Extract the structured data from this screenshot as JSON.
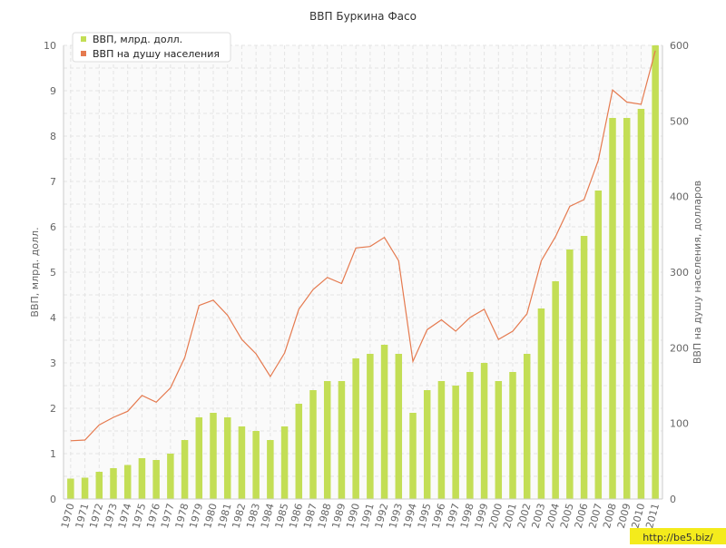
{
  "chart_data": {
    "type": "bar+line",
    "title": "ВВП Буркина Фасо",
    "categories": [
      "1970",
      "1971",
      "1972",
      "1973",
      "1974",
      "1975",
      "1976",
      "1977",
      "1978",
      "1979",
      "1980",
      "1981",
      "1982",
      "1983",
      "1984",
      "1985",
      "1986",
      "1987",
      "1988",
      "1989",
      "1990",
      "1991",
      "1992",
      "1993",
      "1994",
      "1995",
      "1996",
      "1997",
      "1998",
      "1999",
      "2000",
      "2001",
      "2002",
      "2003",
      "2004",
      "2005",
      "2006",
      "2007",
      "2008",
      "2009",
      "2010",
      "2011"
    ],
    "series": [
      {
        "name": "ВВП, млрд. долл.",
        "type": "bar",
        "axis": "left",
        "values": [
          0.45,
          0.47,
          0.6,
          0.68,
          0.75,
          0.9,
          0.86,
          1.0,
          1.3,
          1.8,
          1.9,
          1.8,
          1.6,
          1.5,
          1.3,
          1.6,
          2.1,
          2.4,
          2.6,
          2.6,
          3.1,
          3.2,
          3.4,
          3.2,
          1.9,
          2.4,
          2.6,
          2.5,
          2.8,
          3.0,
          2.6,
          2.8,
          3.2,
          4.2,
          4.8,
          5.5,
          5.8,
          6.8,
          8.4,
          8.4,
          8.6,
          10.0
        ]
      },
      {
        "name": "ВВП на душу населения",
        "type": "line",
        "axis": "right",
        "values": [
          77,
          78,
          98,
          108,
          116,
          137,
          128,
          147,
          187,
          256,
          263,
          243,
          211,
          192,
          162,
          193,
          251,
          277,
          293,
          285,
          332,
          334,
          346,
          315,
          182,
          224,
          237,
          222,
          240,
          251,
          211,
          222,
          245,
          315,
          347,
          387,
          396,
          448,
          541,
          525,
          522,
          593
        ]
      }
    ],
    "y_left": {
      "label": "ВВП, млрд. долл.",
      "lim": [
        0,
        10
      ],
      "ticks": [
        0,
        1,
        2,
        3,
        4,
        5,
        6,
        7,
        8,
        9,
        10
      ]
    },
    "y_right": {
      "label": "ВВП на душу населения, долларов",
      "lim": [
        0,
        600
      ],
      "ticks": [
        0,
        100,
        200,
        300,
        400,
        500,
        600
      ]
    },
    "grid": true,
    "legend": "top-left",
    "colors": {
      "bar": "#c3de55",
      "line": "#e57a4f"
    }
  },
  "watermark": "http://be5.biz/"
}
